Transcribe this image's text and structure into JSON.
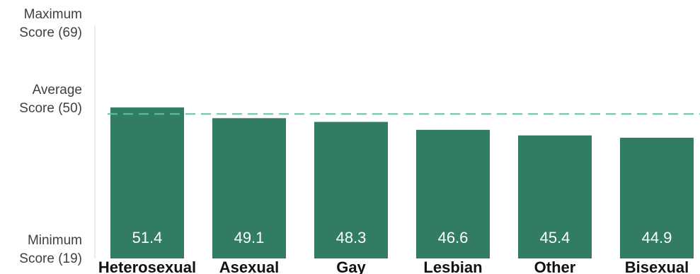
{
  "chart_data": {
    "type": "bar",
    "categories": [
      "Heterosexual",
      "Asexual",
      "Gay",
      "Lesbian",
      "Other",
      "Bisexual"
    ],
    "values": [
      51.4,
      49.1,
      48.3,
      46.6,
      45.4,
      44.9
    ],
    "data_labels": [
      "51.4",
      "49.1",
      "48.3",
      "46.6",
      "45.4",
      "44.9"
    ],
    "ylim": [
      19,
      69
    ],
    "y_reference_labels": [
      {
        "value": 69,
        "line1": "Maximum",
        "line2": "Score (69)"
      },
      {
        "value": 50,
        "line1": "Average",
        "line2": "Score (50)"
      },
      {
        "value": 19,
        "line1": "Minimum",
        "line2": "Score (19)"
      }
    ],
    "average_line": {
      "value": 50,
      "style": "dashed",
      "color": "#5cc3a0"
    },
    "bar_color": "#317c62",
    "grid": false,
    "legend": "none"
  }
}
